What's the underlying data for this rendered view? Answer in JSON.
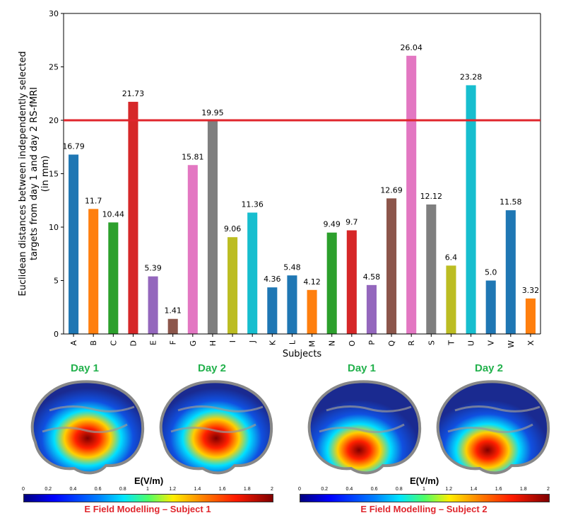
{
  "chart_data": {
    "type": "bar",
    "categories": [
      "A",
      "B",
      "C",
      "D",
      "E",
      "F",
      "G",
      "H",
      "I",
      "J",
      "K",
      "L",
      "M",
      "N",
      "O",
      "P",
      "Q",
      "R",
      "S",
      "T",
      "U",
      "V",
      "W",
      "X"
    ],
    "values": [
      16.79,
      11.7,
      10.44,
      21.73,
      5.39,
      1.41,
      15.81,
      19.95,
      9.06,
      11.36,
      4.36,
      5.48,
      4.12,
      9.49,
      9.7,
      4.58,
      12.69,
      26.04,
      12.12,
      6.4,
      23.28,
      5.0,
      11.58,
      3.32
    ],
    "value_labels": [
      "16.79",
      "11.7",
      "10.44",
      "21.73",
      "5.39",
      "1.41",
      "15.81",
      "19.95",
      "9.06",
      "11.36",
      "4.36",
      "5.48",
      "4.12",
      "9.49",
      "9.7",
      "4.58",
      "12.69",
      "26.04",
      "12.12",
      "6.4",
      "23.28",
      "5.0",
      "11.58",
      "3.32"
    ],
    "colors": [
      "#1f77b4",
      "#ff7f0e",
      "#2ca02c",
      "#d62728",
      "#9467bd",
      "#8c564b",
      "#e377c2",
      "#7f7f7f",
      "#bcbd22",
      "#17becf",
      "#1f77b4",
      "#1f77b4",
      "#ff7f0e",
      "#2ca02c",
      "#d62728",
      "#9467bd",
      "#8c564b",
      "#e377c2",
      "#7f7f7f",
      "#bcbd22",
      "#17becf",
      "#1f77b4",
      "#1f77b4",
      "#ff7f0e"
    ],
    "xlabel": "Subjects",
    "ylabel_lines": [
      "Euclidean distances between independently selected",
      "targets from day 1 and day 2 RS-fMRI",
      "(in mm)"
    ],
    "ylim": [
      0,
      30
    ],
    "yticks": [
      0,
      5,
      10,
      15,
      20,
      25,
      30
    ],
    "threshold": 20,
    "threshold_color": "#e0262d",
    "grid": false
  },
  "panels": [
    {
      "days": [
        "Day 1",
        "Day 2"
      ],
      "colorbar_title": "E(V/m)",
      "colorbar_ticks": [
        "0",
        "0.2",
        "0.4",
        "0.6",
        "0.8",
        "1",
        "1.2",
        "1.4",
        "1.6",
        "1.8",
        "2"
      ],
      "caption": "E Field Modelling – Subject 1"
    },
    {
      "days": [
        "Day 1",
        "Day 2"
      ],
      "colorbar_title": "E(V/m)",
      "colorbar_ticks": [
        "0",
        "0.2",
        "0.4",
        "0.6",
        "0.8",
        "1",
        "1.2",
        "1.4",
        "1.6",
        "1.8",
        "2"
      ],
      "caption": "E Field Modelling – Subject 2"
    }
  ],
  "colors": {
    "day_label": "#22b14c",
    "caption": "#e0262d"
  }
}
